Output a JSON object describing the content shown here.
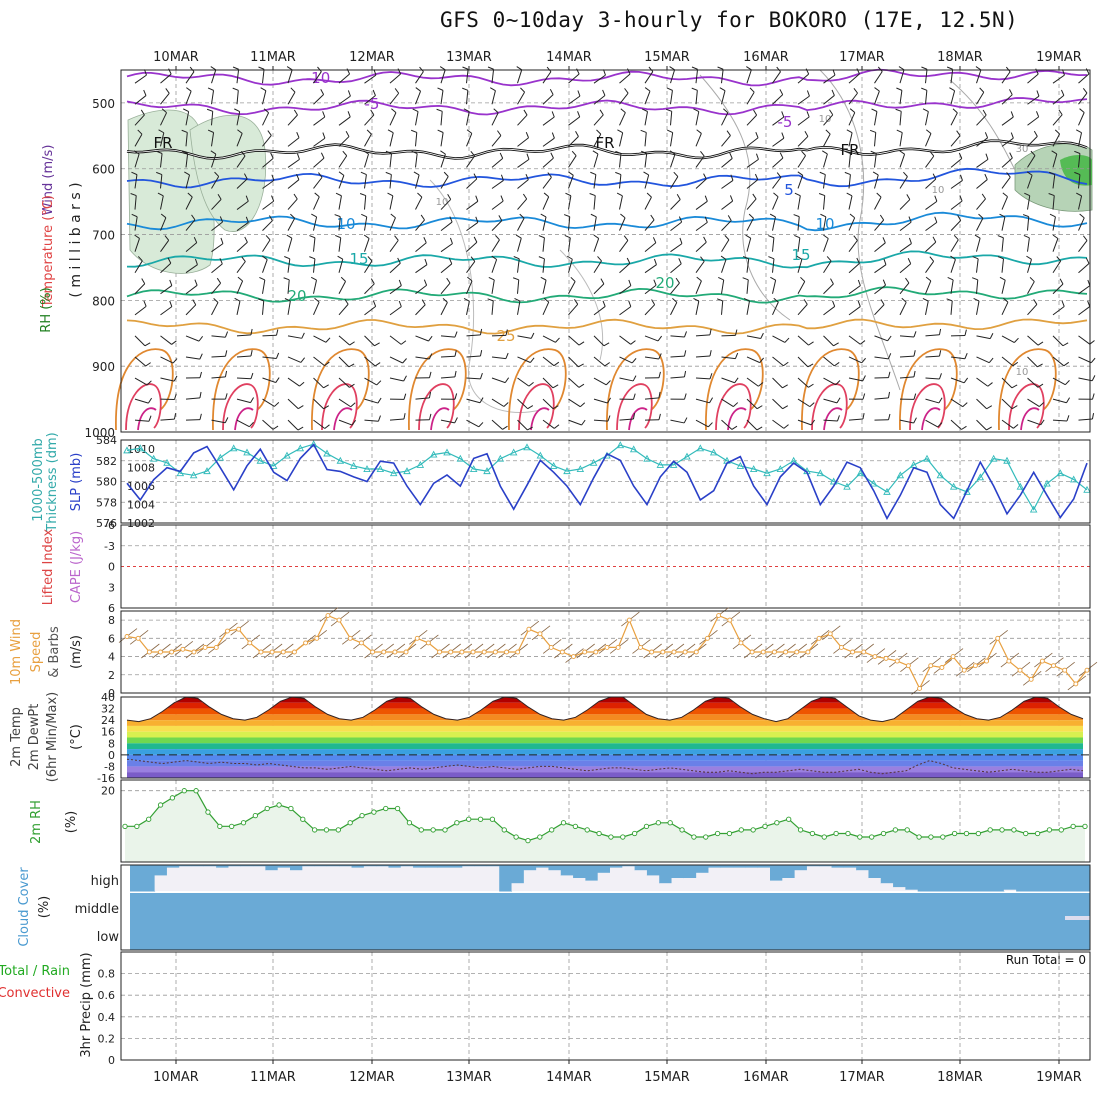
{
  "title": "GFS 0~10day 3-hourly for BOKORO (17E, 12.5N)",
  "days": [
    "10MAR",
    "11MAR",
    "12MAR",
    "13MAR",
    "14MAR",
    "15MAR",
    "16MAR",
    "17MAR",
    "18MAR",
    "19MAR"
  ],
  "run_total_label": "Run Total = 0",
  "colors": {
    "grid": "#999999",
    "rh_fill": "#d8ead8",
    "cloud": "#6aaad6",
    "slp": "#2a40c8",
    "thickness": "#33bbbb",
    "wind_speed": "#e8a040",
    "rh2m": "#33a033"
  },
  "chart_data": [
    {
      "panel": "upper-air",
      "type": "heatmap",
      "ylabel_parts": [
        {
          "text": "Wind (m/s)",
          "color": "#663399"
        },
        {
          "text": "Temperature (°C)",
          "color": "#e04444"
        },
        {
          "text": "RH (%)",
          "color": "#208020"
        },
        {
          "text": "( m i l l i b a r s )",
          "color": "#222222"
        }
      ],
      "yticks": [
        500,
        600,
        700,
        800,
        900,
        1000
      ],
      "ylim": [
        1000,
        450
      ],
      "contour_labels": [
        {
          "text": "-10",
          "color": "#9933cc"
        },
        {
          "text": "-5",
          "color": "#9933cc"
        },
        {
          "text": "-5",
          "color": "#9933cc"
        },
        {
          "text": "FR",
          "color": "#111111"
        },
        {
          "text": "FR",
          "color": "#111111"
        },
        {
          "text": "FR",
          "color": "#111111"
        },
        {
          "text": "5",
          "color": "#2255dd"
        },
        {
          "text": "10",
          "color": "#1a8ad8"
        },
        {
          "text": "10",
          "color": "#1a8ad8"
        },
        {
          "text": "15",
          "color": "#1aa8a8"
        },
        {
          "text": "15",
          "color": "#1aa8a8"
        },
        {
          "text": "20",
          "color": "#22aa77"
        },
        {
          "text": "20",
          "color": "#22aa77"
        },
        {
          "text": "25",
          "color": "#e0a040"
        },
        {
          "text": "10",
          "color": "#999999"
        },
        {
          "text": "10",
          "color": "#999999"
        },
        {
          "text": "10",
          "color": "#999999"
        },
        {
          "text": "30",
          "color": "#999999"
        },
        {
          "text": "10",
          "color": "#999999"
        }
      ],
      "series": [
        {
          "name": "-10",
          "level_mb": 463,
          "color": "#9933cc"
        },
        {
          "name": "-5",
          "level_mb": 507,
          "color": "#9933cc"
        },
        {
          "name": "FR",
          "level_mb": 574,
          "color": "#111111"
        },
        {
          "name": "5",
          "level_mb": 618,
          "color": "#2255dd"
        },
        {
          "name": "10",
          "level_mb": 682,
          "color": "#1a8ad8"
        },
        {
          "name": "15",
          "level_mb": 740,
          "color": "#1aa8a8"
        },
        {
          "name": "20",
          "level_mb": 793,
          "color": "#22aa77"
        },
        {
          "name": "25",
          "level_mb": 840,
          "color": "#e0a040"
        }
      ]
    },
    {
      "panel": "slp-thickness",
      "type": "line",
      "ylabel_left": "Thickness (dm)",
      "ylabel_left2": "1000-500mb",
      "ylabel_right": "SLP (mb)",
      "yticks_left": [
        "584",
        "582",
        "580",
        "578",
        "576"
      ],
      "yticks_right": [
        "1010",
        "1008",
        "1006",
        "1004",
        "1002"
      ],
      "ylim_left": [
        576,
        584
      ],
      "ylim_right": [
        1002,
        1011
      ],
      "series": [
        {
          "name": "SLP (mb)",
          "values": [
            1006.3,
            1004.5,
            1006.7,
            1008.0,
            1007.6,
            1009.6,
            1010.3,
            1008.0,
            1005.6,
            1008.2,
            1010.0,
            1007.5,
            1006.6,
            1009.0,
            1010.5,
            1007.8,
            1007.6,
            1007.0,
            1006.5,
            1008.7,
            1008.5,
            1006.0,
            1004.0,
            1006.3,
            1007.2,
            1006.0,
            1009.0,
            1009.5,
            1006.0,
            1003.5,
            1006.1,
            1008.8,
            1007.5,
            1006.0,
            1004.0,
            1006.9,
            1009.5,
            1008.8,
            1006.0,
            1004.0,
            1007.0,
            1008.7,
            1007.5,
            1004.5,
            1005.5,
            1008.5,
            1009.2,
            1006.0,
            1004.0,
            1007.0,
            1008.5,
            1007.5,
            1004.0,
            1006.0,
            1008.6,
            1008.0,
            1005.5,
            1002.5,
            1005.0,
            1008.0,
            1007.5,
            1004.0,
            1002.5,
            1005.5,
            1008.6,
            1006.0,
            1003.0,
            1005.0,
            1007.5,
            1005.0,
            1002.6,
            1004.6,
            1008.5
          ]
        },
        {
          "name": "1000-500mb Thickness (dm)",
          "values": [
            583.0,
            583.2,
            582.2,
            581.8,
            580.8,
            580.6,
            581.0,
            582.3,
            583.2,
            582.8,
            582.0,
            581.5,
            582.5,
            583.2,
            583.6,
            582.7,
            582.0,
            581.5,
            581.2,
            581.2,
            580.8,
            581.0,
            581.6,
            582.6,
            582.8,
            582.2,
            581.2,
            581.0,
            582.2,
            582.8,
            583.3,
            582.5,
            581.5,
            581.0,
            581.2,
            581.8,
            582.5,
            583.5,
            583.1,
            582.2,
            581.6,
            581.6,
            582.4,
            583.2,
            582.8,
            582.0,
            581.5,
            581.2,
            580.8,
            581.2,
            582.0,
            581.0,
            580.8,
            580.0,
            579.5,
            580.8,
            579.8,
            579.0,
            580.6,
            581.6,
            582.2,
            580.6,
            579.5,
            579.0,
            580.4,
            582.2,
            582.0,
            579.5,
            577.3,
            579.8,
            580.8,
            580.2,
            579.2
          ]
        }
      ]
    },
    {
      "panel": "stability",
      "type": "line",
      "ylabel_left": "Lifted Index",
      "ylabel_right": "CAPE (J/kg)",
      "yticks": [
        "-6",
        "-3",
        "0",
        "3",
        "6"
      ],
      "ylim": [
        -6,
        6
      ],
      "series": [
        {
          "name": "Lifted Index",
          "values": [
            0,
            0,
            0,
            0,
            0,
            0,
            0,
            0,
            0,
            0
          ]
        }
      ]
    },
    {
      "panel": "10m-wind",
      "type": "line",
      "ylabel_left": "10m Wind",
      "ylabel_mid1": "Speed",
      "ylabel_mid2": "& Barbs",
      "ylabel_right": "(m/s)",
      "yticks": [
        "0",
        "2",
        "4",
        "6",
        "8"
      ],
      "ylim": [
        0,
        9
      ],
      "series": [
        {
          "name": "Speed",
          "values": [
            6.2,
            6.0,
            4.5,
            4.5,
            4.5,
            4.8,
            4.5,
            5.0,
            5.0,
            6.8,
            7.0,
            5.5,
            4.5,
            4.5,
            4.5,
            4.5,
            5.5,
            6.0,
            8.5,
            8.0,
            6.0,
            5.5,
            4.5,
            4.5,
            4.5,
            4.5,
            6.0,
            5.5,
            4.5,
            4.5,
            4.5,
            4.5,
            4.5,
            4.5,
            4.5,
            4.5,
            7.0,
            6.5,
            5.0,
            4.5,
            4.0,
            4.5,
            4.5,
            5.0,
            5.0,
            8.0,
            5.0,
            4.5,
            4.5,
            4.5,
            4.5,
            4.5,
            6.0,
            8.5,
            8.0,
            5.5,
            4.5,
            4.5,
            4.5,
            4.5,
            4.5,
            4.5,
            6.0,
            6.5,
            5.0,
            4.5,
            4.5,
            4.0,
            3.8,
            3.5,
            3.0,
            0.5,
            3.0,
            2.8,
            4.0,
            2.5,
            3.0,
            3.5,
            6.0,
            3.5,
            2.5,
            1.5,
            3.5,
            3.0,
            2.5,
            1.0,
            2.5
          ]
        }
      ]
    },
    {
      "panel": "2m-temp",
      "type": "area",
      "ylabel_left": "2m Temp",
      "ylabel_mid1": "2m DewPt",
      "ylabel_mid2": "(6hr Min/Max)",
      "ylabel_right": "(°C)",
      "yticks": [
        "40",
        "32",
        "24",
        "16",
        "8",
        "0",
        "-8",
        "-16"
      ],
      "ylim": [
        -16,
        40
      ],
      "series": [
        {
          "name": "2m Temp",
          "values": [
            24,
            23,
            25,
            30,
            36,
            40,
            39,
            33,
            28,
            25,
            24,
            26,
            31,
            37,
            40,
            39,
            33,
            28,
            25,
            24,
            26,
            31,
            37,
            40,
            39,
            33,
            28,
            25,
            24,
            26,
            31,
            37,
            40,
            39,
            33,
            28,
            25,
            24,
            26,
            31,
            37,
            40,
            40,
            34,
            28,
            25,
            24,
            26,
            31,
            37,
            40,
            39,
            33,
            28,
            25,
            23,
            25,
            31,
            37,
            40,
            39,
            33,
            27,
            24,
            23,
            25,
            31,
            37,
            40,
            39,
            33,
            28,
            25,
            24,
            26,
            31,
            37,
            40,
            39,
            33,
            28,
            25
          ]
        },
        {
          "name": "2m DewPt",
          "values": [
            -3,
            -4,
            -5,
            -6,
            -5,
            -4,
            -5,
            -6,
            -5,
            -6,
            -6,
            -7,
            -6,
            -7,
            -8,
            -9,
            -9,
            -10,
            -9,
            -8,
            -9,
            -10,
            -11,
            -10,
            -9,
            -10,
            -9,
            -8,
            -7,
            -8,
            -9,
            -8,
            -9,
            -10,
            -9,
            -8,
            -8,
            -9,
            -10,
            -11,
            -10,
            -9,
            -9,
            -10,
            -11,
            -10,
            -9,
            -10,
            -11,
            -12,
            -12,
            -11,
            -12,
            -13,
            -12,
            -12,
            -11,
            -10,
            -11,
            -12,
            -12,
            -11,
            -10,
            -12,
            -13,
            -12,
            -11,
            -7,
            -4,
            -6,
            -9,
            -10,
            -11,
            -12,
            -11,
            -10,
            -11,
            -12,
            -12,
            -11,
            -10,
            -11
          ]
        }
      ]
    },
    {
      "panel": "2m-rh",
      "type": "area",
      "ylabel_left": "2m RH",
      "ylabel_right": "(%)",
      "yticks": [
        "20"
      ],
      "ylim": [
        0,
        23
      ],
      "series": [
        {
          "name": "2m RH",
          "values": [
            10,
            10,
            12,
            16,
            18,
            20,
            20,
            14,
            10,
            10,
            11,
            13,
            15,
            16,
            15,
            12,
            9,
            9,
            9,
            11,
            13,
            14,
            15,
            15,
            11,
            9,
            9,
            9,
            11,
            12,
            12,
            12,
            9,
            7,
            6,
            7,
            9,
            11,
            10,
            9,
            8,
            7,
            7,
            8,
            10,
            11,
            11,
            9,
            7,
            7,
            8,
            8,
            9,
            9,
            10,
            11,
            12,
            9,
            8,
            7,
            8,
            8,
            7,
            7,
            8,
            9,
            9,
            7,
            7,
            7,
            8,
            8,
            8,
            9,
            9,
            9,
            8,
            8,
            9,
            9,
            10,
            10
          ]
        }
      ]
    },
    {
      "panel": "cloud-cover",
      "type": "bar",
      "ylabel_left": "Cloud Cover",
      "ylabel_right": "(%)",
      "ytick_labels": [
        "high",
        "middle",
        "low"
      ],
      "series": [
        {
          "name": "high",
          "values": [
            0,
            0,
            0.6,
            0.9,
            0.95,
            0.95,
            0.95,
            0.9,
            0.95,
            0.95,
            0.95,
            0.8,
            0.9,
            0.8,
            0.95,
            0.95,
            0.95,
            0.95,
            0.9,
            0.95,
            0.95,
            0.9,
            0.95,
            0.9,
            0.9,
            0.9,
            0.9,
            0.95,
            0.95,
            0.95,
            0,
            0.3,
            0.8,
            0.9,
            0.8,
            0.6,
            0.5,
            0.4,
            0.7,
            0.9,
            0.95,
            0.8,
            0.6,
            0.3,
            0.5,
            0.5,
            0.7,
            0.9,
            0.9,
            0.9,
            0.9,
            0.9,
            0.4,
            0.5,
            0.8,
            0.95,
            0.95,
            0.9,
            0.9,
            0.8,
            0.5,
            0.3,
            0.15,
            0.05,
            0,
            0,
            0,
            0,
            0,
            0,
            0,
            0.05,
            0,
            0,
            0,
            0,
            0,
            0
          ]
        }
      ]
    },
    {
      "panel": "precip",
      "type": "bar",
      "ylabel_left": "3hr Precip (mm)",
      "ylabel_legend1": "Total / Rain",
      "ylabel_legend2": "Convective",
      "yticks": [
        "0",
        "0.2",
        "0.4",
        "0.6",
        "0.8"
      ],
      "ylim": [
        0,
        1
      ],
      "series": [
        {
          "name": "Total / Rain",
          "values": [
            0,
            0,
            0,
            0,
            0,
            0,
            0,
            0,
            0,
            0
          ]
        }
      ]
    }
  ]
}
